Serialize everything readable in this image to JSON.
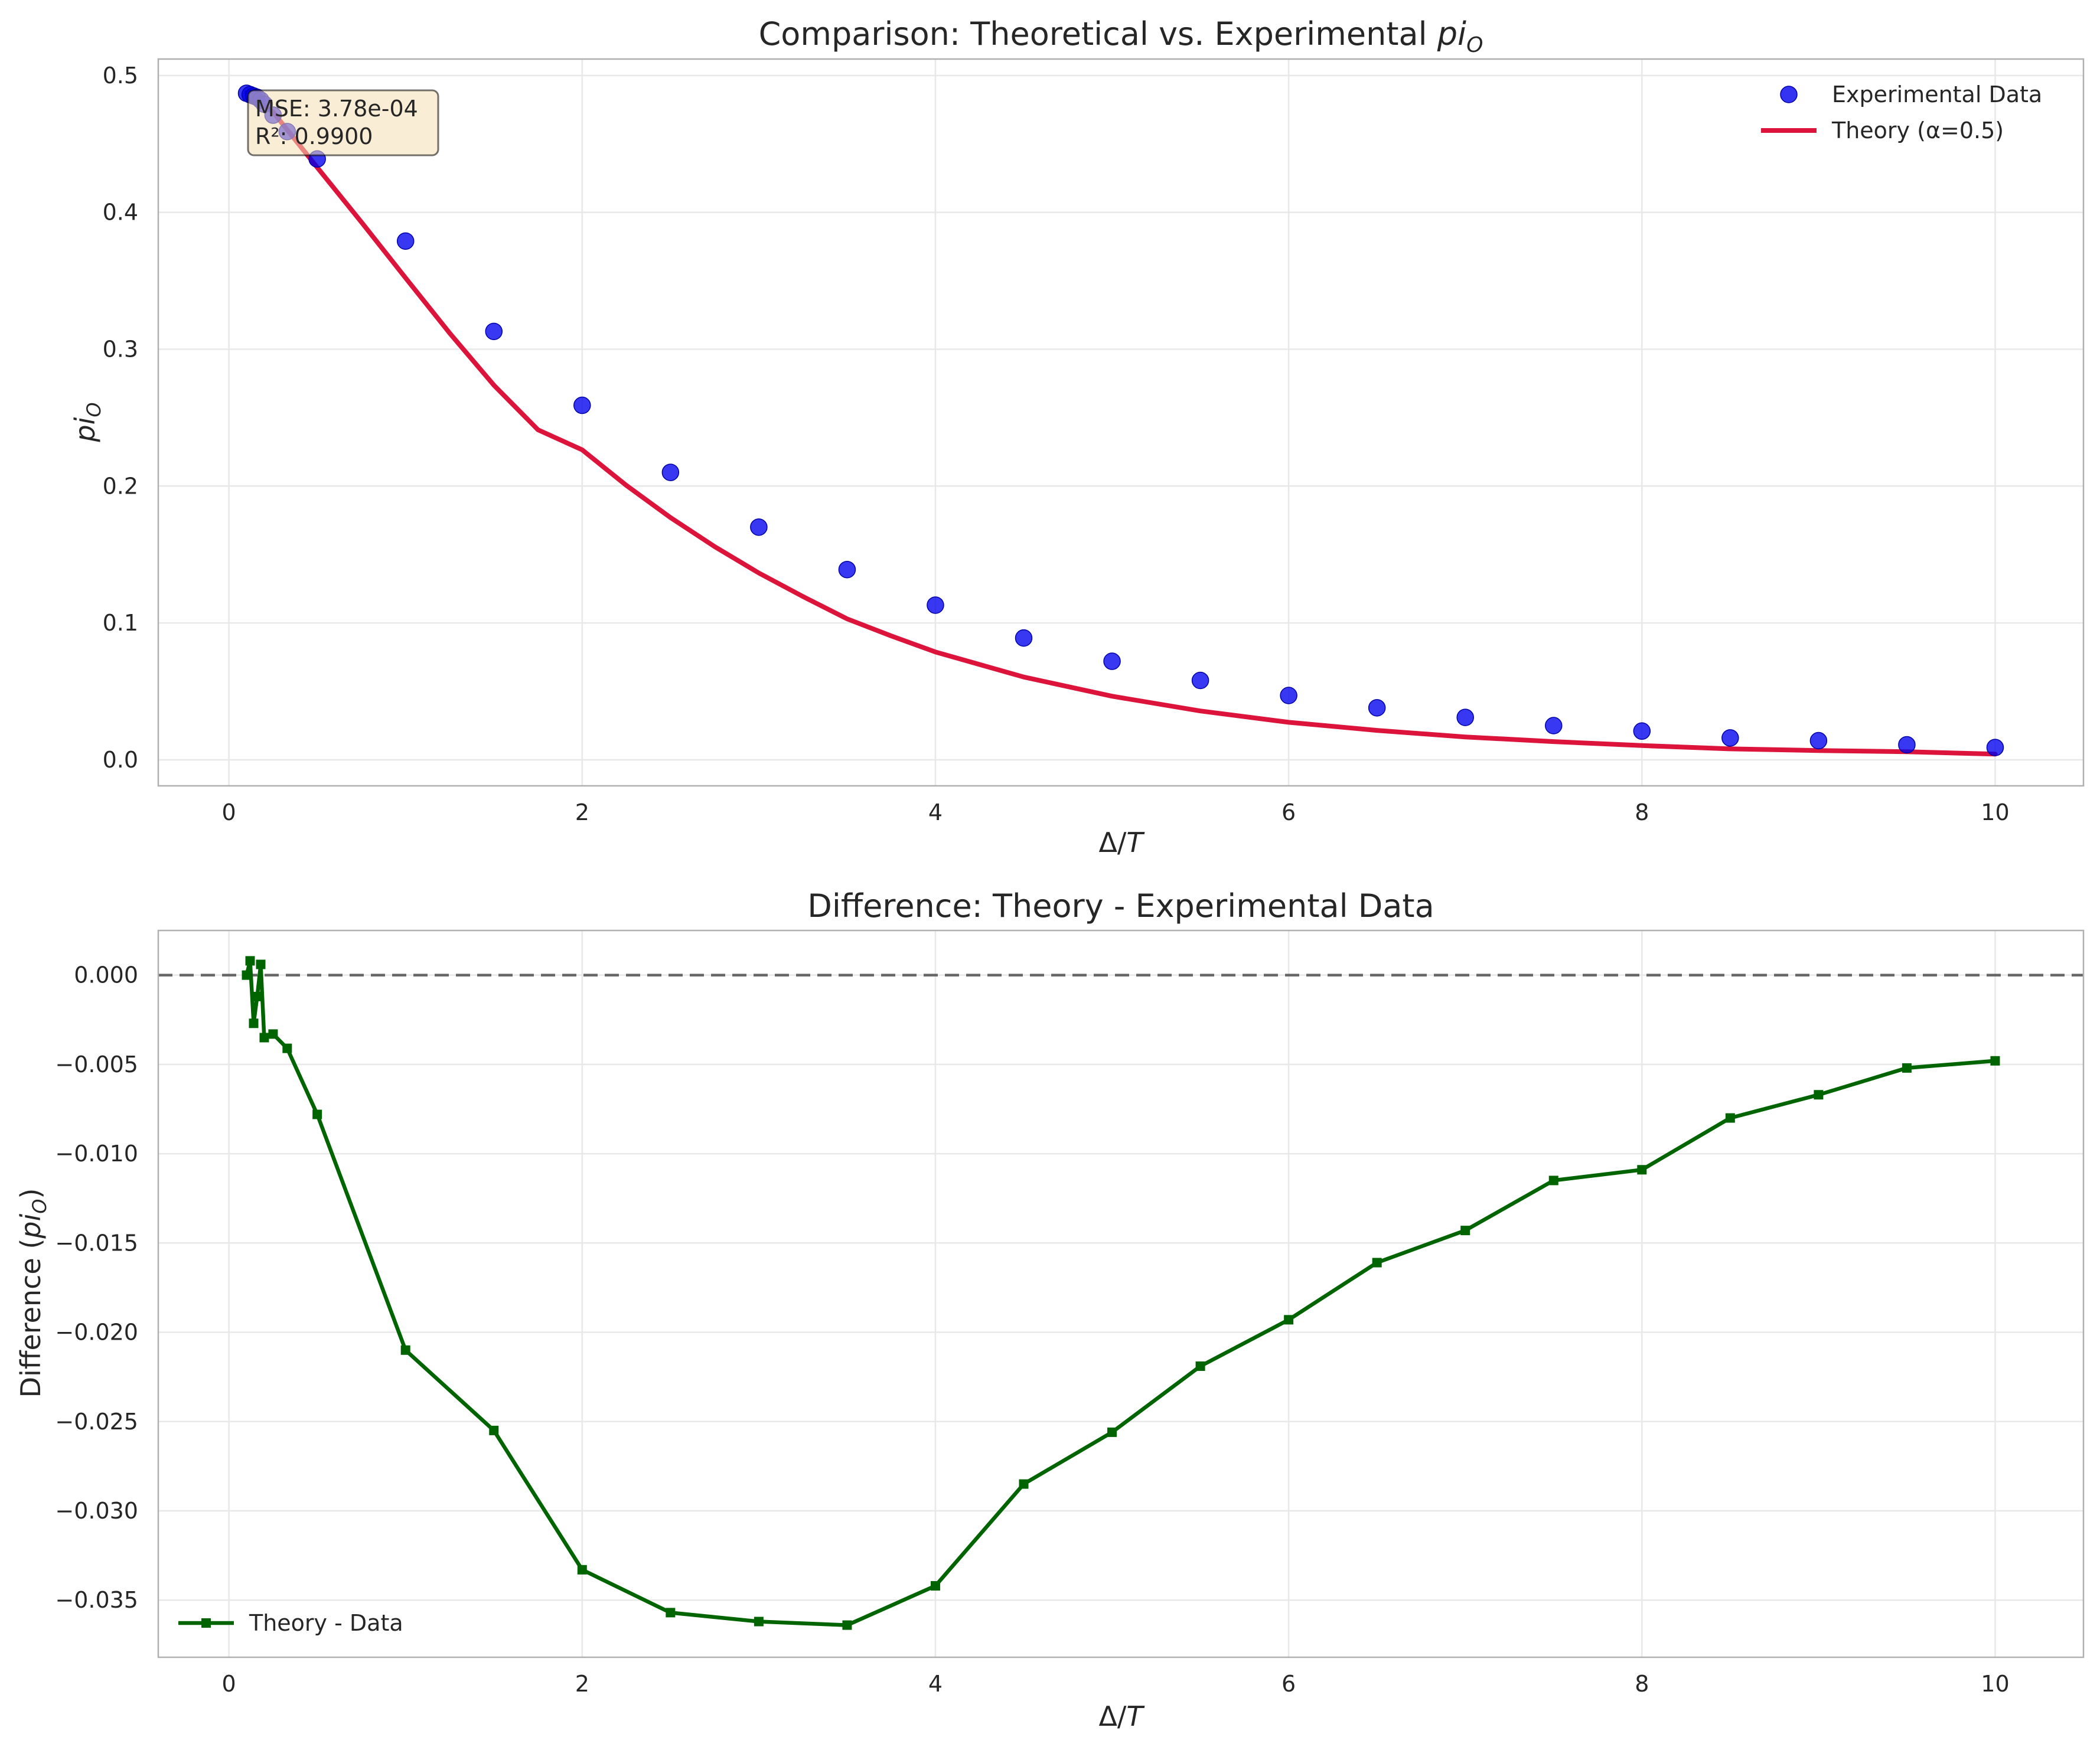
{
  "chart_data": [
    {
      "type": "scatter",
      "title": "Comparison: Theoretical vs. Experimental ",
      "title_math": "pi",
      "title_math_sub": "O",
      "xlabel_prefix": "Δ/",
      "xlabel_var": "T",
      "ylabel_var": "pi",
      "ylabel_sub": "O",
      "xlim": [
        -0.4,
        10.5
      ],
      "ylim": [
        -0.019,
        0.512
      ],
      "xticks": [
        0,
        2,
        4,
        6,
        8,
        10
      ],
      "yticks": [
        0.0,
        0.1,
        0.2,
        0.3,
        0.4,
        0.5
      ],
      "ytick_labels": [
        "0.0",
        "0.1",
        "0.2",
        "0.3",
        "0.4",
        "0.5"
      ],
      "grid": true,
      "legend_position": "top-right",
      "legend": [
        {
          "label": "Experimental Data",
          "kind": "marker",
          "color": "#0000ee"
        },
        {
          "label": "Theory (α=0.5)",
          "kind": "line",
          "color": "#dc143c"
        }
      ],
      "annotation": [
        "MSE: 3.78e-04",
        "R²: 0.9900"
      ],
      "series": [
        {
          "name": "Experimental Data",
          "kind": "scatter",
          "color": "#0000ee",
          "x": [
            0.1,
            0.12,
            0.14,
            0.16,
            0.18,
            0.2,
            0.25,
            0.33,
            0.5,
            1.0,
            1.5,
            2.0,
            2.5,
            3.0,
            3.5,
            4.0,
            4.5,
            5.0,
            5.5,
            6.0,
            6.5,
            7.0,
            7.5,
            8.0,
            8.5,
            9.0,
            9.5,
            10.0
          ],
          "y": [
            0.487,
            0.486,
            0.485,
            0.484,
            0.482,
            0.479,
            0.471,
            0.459,
            0.439,
            0.379,
            0.313,
            0.259,
            0.21,
            0.17,
            0.139,
            0.113,
            0.089,
            0.072,
            0.058,
            0.047,
            0.038,
            0.031,
            0.025,
            0.021,
            0.016,
            0.014,
            0.011,
            0.009
          ]
        },
        {
          "name": "Theory (α=0.5)",
          "kind": "line",
          "color": "#dc143c",
          "x": [
            0.1,
            0.25,
            0.5,
            0.75,
            1.0,
            1.25,
            1.5,
            1.75,
            2.0,
            2.25,
            2.5,
            2.75,
            3.0,
            3.25,
            3.5,
            3.75,
            4.0,
            4.5,
            5.0,
            5.5,
            6.0,
            6.5,
            7.0,
            7.5,
            8.0,
            8.5,
            9.0,
            9.5,
            10.0
          ],
          "y": [
            0.4875,
            0.4733,
            0.4328,
            0.3929,
            0.3521,
            0.3117,
            0.2737,
            0.2411,
            0.2265,
            0.2005,
            0.177,
            0.1558,
            0.1365,
            0.1193,
            0.103,
            0.0905,
            0.0788,
            0.0605,
            0.0465,
            0.0357,
            0.0274,
            0.0215,
            0.0167,
            0.0133,
            0.0104,
            0.008,
            0.0068,
            0.0059,
            0.0042
          ]
        }
      ]
    },
    {
      "type": "line",
      "title": "Difference: Theory - Experimental Data",
      "xlabel_prefix": "Δ/",
      "xlabel_var": "T",
      "ylabel_prefix": "Difference (",
      "ylabel_var": "pi",
      "ylabel_sub": "O",
      "ylabel_suffix": ")",
      "xlim": [
        -0.4,
        10.5
      ],
      "ylim": [
        -0.0382,
        0.0025
      ],
      "xticks": [
        0,
        2,
        4,
        6,
        8,
        10
      ],
      "yticks": [
        0.0,
        -0.005,
        -0.01,
        -0.015,
        -0.02,
        -0.025,
        -0.03,
        -0.035
      ],
      "ytick_labels": [
        "0.000",
        "−0.005",
        "−0.010",
        "−0.015",
        "−0.020",
        "−0.025",
        "−0.030",
        "−0.035"
      ],
      "reference_line_y": 0,
      "grid": true,
      "legend_position": "bottom-left",
      "legend": [
        {
          "label": "Theory - Data",
          "kind": "line-marker",
          "color": "#006400"
        }
      ],
      "series": [
        {
          "name": "Theory - Data",
          "color": "#006400",
          "x": [
            0.1,
            0.12,
            0.14,
            0.16,
            0.18,
            0.2,
            0.25,
            0.33,
            0.5,
            1.0,
            1.5,
            2.0,
            2.5,
            3.0,
            3.5,
            4.0,
            4.5,
            5.0,
            5.5,
            6.0,
            6.5,
            7.0,
            7.5,
            8.0,
            8.5,
            9.0,
            9.5,
            10.0
          ],
          "y": [
            0.0,
            0.0008,
            -0.0027,
            -0.0012,
            0.0006,
            -0.0035,
            -0.0033,
            -0.0041,
            -0.0078,
            -0.021,
            -0.0255,
            -0.0333,
            -0.0357,
            -0.0362,
            -0.0364,
            -0.0342,
            -0.0285,
            -0.0256,
            -0.0219,
            -0.0193,
            -0.0161,
            -0.0143,
            -0.0115,
            -0.0109,
            -0.008,
            -0.0067,
            -0.0052,
            -0.0048
          ]
        }
      ]
    }
  ]
}
